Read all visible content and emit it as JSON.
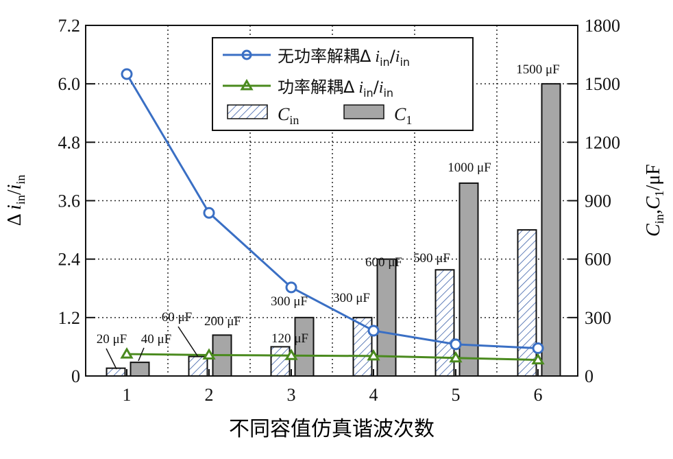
{
  "chart_data": {
    "type": "bar+line",
    "xlabel": "不同容值仿真谐波次数",
    "ylabel_left": "Δ i_in/i_in",
    "ylabel_right": "C_in,C_1/μF",
    "categories": [
      "1",
      "2",
      "3",
      "4",
      "5",
      "6"
    ],
    "ylim_left": [
      0,
      7.2
    ],
    "yticks_left": [
      "0",
      "1.2",
      "2.4",
      "3.6",
      "4.8",
      "6.0",
      "7.2"
    ],
    "ylim_right": [
      0,
      1800
    ],
    "yticks_right": [
      "0",
      "300",
      "600",
      "900",
      "1200",
      "1500",
      "1800"
    ],
    "grid": true,
    "legend_placement": "top-center",
    "series": [
      {
        "name": "无功率解耦Δ i_in/i_in",
        "kind": "line",
        "axis": "left",
        "color": "#3a6fc4",
        "marker": "circle",
        "values": [
          6.2,
          3.35,
          1.82,
          0.93,
          0.65,
          0.57
        ]
      },
      {
        "name": "功率解耦Δ i_in/i_in",
        "kind": "line",
        "axis": "left",
        "color": "#4a8a1e",
        "marker": "triangle",
        "values": [
          0.45,
          0.43,
          0.42,
          0.41,
          0.37,
          0.33
        ]
      },
      {
        "name": "C_in",
        "kind": "bar",
        "axis": "right",
        "fill": "hatched",
        "color": "#3a5fa8",
        "values": [
          40,
          100,
          150,
          300,
          545,
          750
        ]
      },
      {
        "name": "C_1",
        "kind": "bar",
        "axis": "right",
        "fill": "solid",
        "color": "#a6a6a6",
        "values": [
          70,
          210,
          300,
          600,
          990,
          1500
        ]
      }
    ],
    "annotations": [
      "20 μF",
      "40 μF",
      "60 μF",
      "200 μF",
      "120 μF",
      "300 μF",
      "300 μF",
      "600 μF",
      "500 μF",
      "1000 μF",
      "1500 μF"
    ]
  }
}
